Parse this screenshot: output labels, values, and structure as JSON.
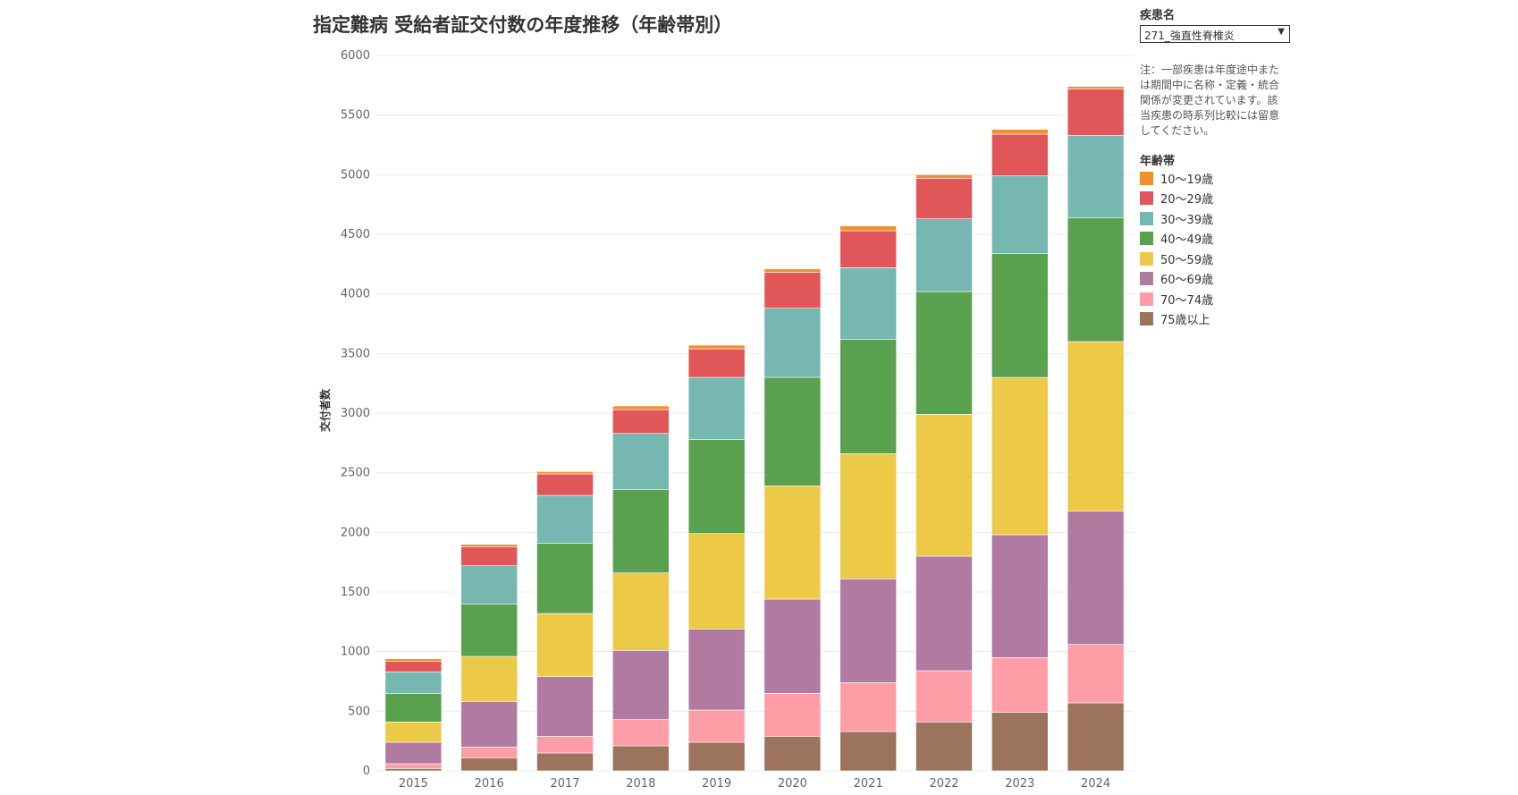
{
  "chart_data": {
    "type": "bar",
    "stacked": true,
    "title": "指定難病 受給者証交付数の年度推移（年齢帯別）",
    "ylabel": "交付者数",
    "xlabel": "",
    "ylim": [
      0,
      6000
    ],
    "yticks": [
      0,
      500,
      1000,
      1500,
      2000,
      2500,
      3000,
      3500,
      4000,
      4500,
      5000,
      5500,
      6000
    ],
    "grid": true,
    "legend_position": "right",
    "categories": [
      "2015",
      "2016",
      "2017",
      "2018",
      "2019",
      "2020",
      "2021",
      "2022",
      "2023",
      "2024"
    ],
    "series": [
      {
        "name": "75歳以上",
        "color": "#9c735c",
        "values": [
          20,
          110,
          150,
          210,
          240,
          290,
          330,
          410,
          490,
          570
        ]
      },
      {
        "name": "70〜74歳",
        "color": "#ff9da7",
        "values": [
          40,
          90,
          140,
          220,
          270,
          360,
          410,
          430,
          460,
          490
        ]
      },
      {
        "name": "60〜69歳",
        "color": "#b07aa1",
        "values": [
          180,
          380,
          500,
          580,
          680,
          790,
          870,
          960,
          1030,
          1120
        ]
      },
      {
        "name": "50〜59歳",
        "color": "#edc948",
        "values": [
          170,
          380,
          530,
          650,
          800,
          950,
          1050,
          1190,
          1320,
          1420
        ]
      },
      {
        "name": "40〜49歳",
        "color": "#59a14f",
        "values": [
          240,
          440,
          590,
          700,
          790,
          910,
          960,
          1030,
          1040,
          1040
        ]
      },
      {
        "name": "30〜39歳",
        "color": "#76b7b2",
        "values": [
          180,
          320,
          400,
          470,
          520,
          580,
          600,
          610,
          650,
          690
        ]
      },
      {
        "name": "20〜29歳",
        "color": "#e15759",
        "values": [
          90,
          160,
          180,
          200,
          240,
          300,
          310,
          340,
          350,
          390
        ]
      },
      {
        "name": "10〜19歳",
        "color": "#f28e2b",
        "values": [
          20,
          20,
          20,
          30,
          30,
          30,
          40,
          30,
          40,
          20
        ]
      }
    ]
  },
  "filter": {
    "label": "疾患名",
    "selected": "271_強直性脊椎炎"
  },
  "note": "注：一部疾患は年度途中または期間中に名称・定義・統合関係が変更されています。該当疾患の時系列比較には留意してください。",
  "legend": {
    "title": "年齢帯",
    "items": [
      {
        "name": "10〜19歳",
        "color": "#f28e2b"
      },
      {
        "name": "20〜29歳",
        "color": "#e15759"
      },
      {
        "name": "30〜39歳",
        "color": "#76b7b2"
      },
      {
        "name": "40〜49歳",
        "color": "#59a14f"
      },
      {
        "name": "50〜59歳",
        "color": "#edc948"
      },
      {
        "name": "60〜69歳",
        "color": "#b07aa1"
      },
      {
        "name": "70〜74歳",
        "color": "#ff9da7"
      },
      {
        "name": "75歳以上",
        "color": "#9c735c"
      }
    ]
  }
}
